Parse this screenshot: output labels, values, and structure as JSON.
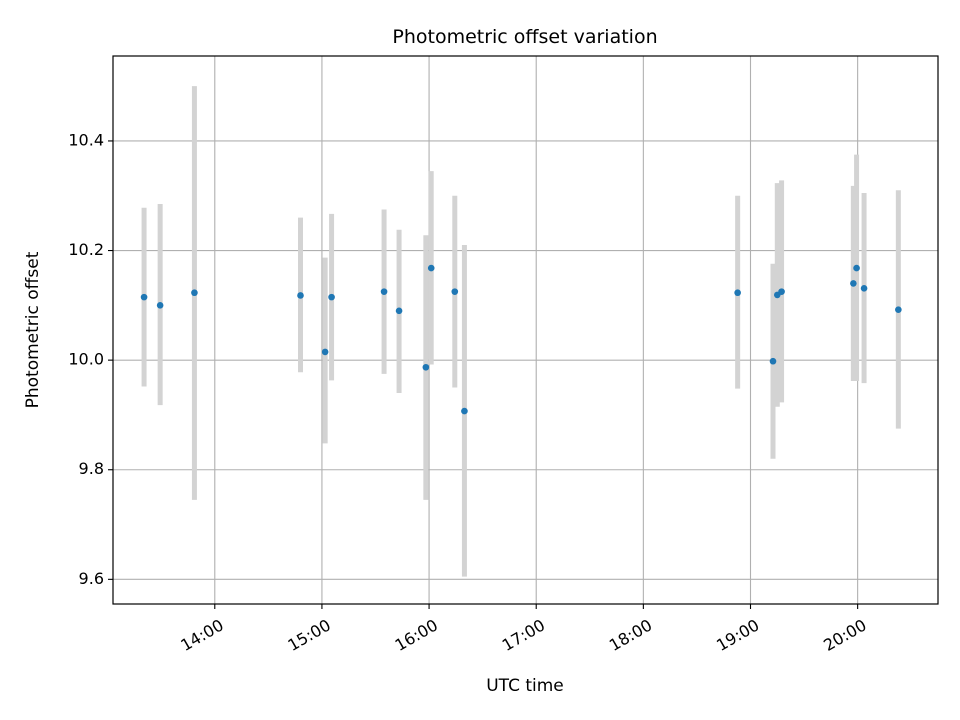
{
  "chart_data": {
    "type": "scatter",
    "title": "Photometric offset variation",
    "xlabel": "UTC time",
    "ylabel": "Photometric offset",
    "x_unit": "hours (UTC)",
    "xlim": [
      13.05,
      20.75
    ],
    "ylim": [
      9.555,
      10.555
    ],
    "x_ticks": [
      {
        "value": 14,
        "label": "14:00"
      },
      {
        "value": 15,
        "label": "15:00"
      },
      {
        "value": 16,
        "label": "16:00"
      },
      {
        "value": 17,
        "label": "17:00"
      },
      {
        "value": 18,
        "label": "18:00"
      },
      {
        "value": 19,
        "label": "19:00"
      },
      {
        "value": 20,
        "label": "20:00"
      }
    ],
    "y_ticks": [
      {
        "value": 9.6,
        "label": "9.6"
      },
      {
        "value": 9.8,
        "label": "9.8"
      },
      {
        "value": 10.0,
        "label": "10.0"
      },
      {
        "value": 10.2,
        "label": "10.2"
      },
      {
        "value": 10.4,
        "label": "10.4"
      }
    ],
    "grid": true,
    "point_color": "#1f77b4",
    "errorbar_color": "#d3d3d3",
    "points": [
      {
        "x": 13.34,
        "y": 10.115,
        "ylow": 9.952,
        "yhigh": 10.278
      },
      {
        "x": 13.49,
        "y": 10.1,
        "ylow": 9.918,
        "yhigh": 10.285
      },
      {
        "x": 13.81,
        "y": 10.123,
        "ylow": 9.745,
        "yhigh": 10.5
      },
      {
        "x": 14.8,
        "y": 10.118,
        "ylow": 9.978,
        "yhigh": 10.26
      },
      {
        "x": 15.03,
        "y": 10.015,
        "ylow": 9.848,
        "yhigh": 10.187
      },
      {
        "x": 15.09,
        "y": 10.115,
        "ylow": 9.963,
        "yhigh": 10.267
      },
      {
        "x": 15.58,
        "y": 10.125,
        "ylow": 9.975,
        "yhigh": 10.275
      },
      {
        "x": 15.72,
        "y": 10.09,
        "ylow": 9.94,
        "yhigh": 10.238
      },
      {
        "x": 15.97,
        "y": 9.987,
        "ylow": 9.745,
        "yhigh": 10.228
      },
      {
        "x": 16.02,
        "y": 10.168,
        "ylow": 9.992,
        "yhigh": 10.345
      },
      {
        "x": 16.24,
        "y": 10.125,
        "ylow": 9.95,
        "yhigh": 10.3
      },
      {
        "x": 16.33,
        "y": 9.907,
        "ylow": 9.605,
        "yhigh": 10.21
      },
      {
        "x": 18.88,
        "y": 10.123,
        "ylow": 9.948,
        "yhigh": 10.3
      },
      {
        "x": 19.21,
        "y": 9.998,
        "ylow": 9.82,
        "yhigh": 10.176
      },
      {
        "x": 19.25,
        "y": 10.119,
        "ylow": 9.915,
        "yhigh": 10.323
      },
      {
        "x": 19.29,
        "y": 10.125,
        "ylow": 9.923,
        "yhigh": 10.328
      },
      {
        "x": 19.96,
        "y": 10.14,
        "ylow": 9.962,
        "yhigh": 10.318
      },
      {
        "x": 19.99,
        "y": 10.168,
        "ylow": 9.962,
        "yhigh": 10.375
      },
      {
        "x": 20.06,
        "y": 10.131,
        "ylow": 9.958,
        "yhigh": 10.305
      },
      {
        "x": 20.38,
        "y": 10.092,
        "ylow": 9.875,
        "yhigh": 10.31
      }
    ]
  }
}
